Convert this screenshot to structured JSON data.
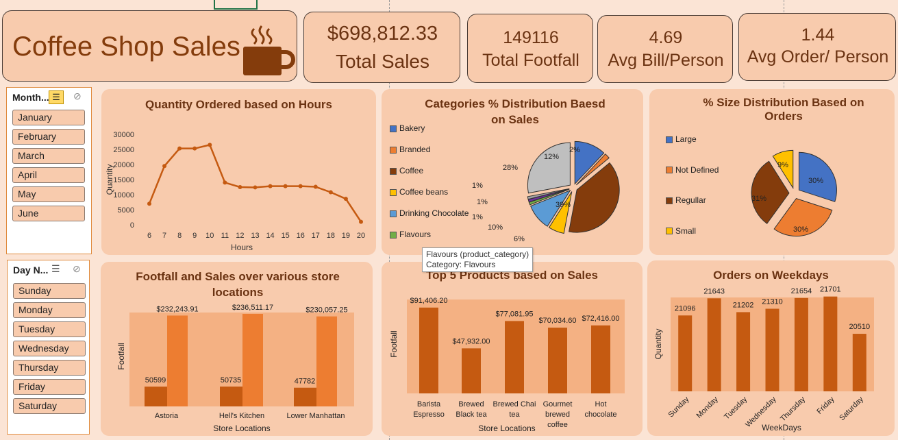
{
  "title": "Coffee Shop Sales",
  "kpis": [
    {
      "value": "$698,812.33",
      "label": "Total Sales"
    },
    {
      "value": "149116",
      "label": "Total Footfall"
    },
    {
      "value": "4.69",
      "label": "Avg Bill/Person"
    },
    {
      "value": "1.44",
      "label": "Avg Order/ Person"
    }
  ],
  "month_slicer": {
    "header": "Month...",
    "items": [
      "January",
      "February",
      "March",
      "April",
      "May",
      "June"
    ]
  },
  "day_slicer": {
    "header": "Day N...",
    "items": [
      "Sunday",
      "Monday",
      "Tuesday",
      "Wednesday",
      "Thursday",
      "Friday",
      "Saturday"
    ]
  },
  "tooltip": {
    "line1": "Flavours (product_category)",
    "line2": "Category: Flavours"
  },
  "colors": {
    "accent": "#c55a11",
    "accent_light": "#ed7d31",
    "panel": "#f8cbad",
    "background": "#fbe4d5",
    "title_brown": "#6b3312"
  },
  "chart_data": [
    {
      "type": "line",
      "title": "Quantity Ordered based on Hours",
      "xlabel": "Hours",
      "ylabel": "Quantity",
      "x": [
        6,
        7,
        8,
        9,
        10,
        11,
        12,
        13,
        14,
        15,
        16,
        17,
        18,
        19,
        20
      ],
      "values": [
        7000,
        19500,
        25300,
        25300,
        26500,
        14000,
        12500,
        12400,
        12800,
        12800,
        12800,
        12600,
        10800,
        8600,
        1000
      ],
      "ylim": [
        0,
        30000
      ],
      "yticks": [
        0,
        5000,
        10000,
        15000,
        20000,
        25000,
        30000
      ]
    },
    {
      "type": "pie",
      "title": "Categories % Distribution Baesd on Sales",
      "slices": [
        {
          "name": "Bakery",
          "value": 12,
          "label": "12%",
          "color": "#4472c4"
        },
        {
          "name": "Branded",
          "value": 2,
          "label": "2%",
          "color": "#ed7d31"
        },
        {
          "name": "Coffee",
          "value": 39,
          "label": "39%",
          "color": "#843c0c"
        },
        {
          "name": "Coffee beans",
          "value": 6,
          "label": "6%",
          "color": "#ffc000"
        },
        {
          "name": "Drinking Chocolate",
          "value": 10,
          "label": "10%",
          "color": "#5b9bd5"
        },
        {
          "name": "Flavours",
          "value": 1,
          "label": "1%",
          "color": "#70ad47"
        },
        {
          "name": "",
          "value": 1,
          "label": "1%",
          "color": "#7030a0"
        },
        {
          "name": "",
          "value": 1,
          "label": "1%",
          "color": "#a5a5a5"
        },
        {
          "name": "",
          "value": 28,
          "label": "28%",
          "color": "#bfbfbf"
        }
      ],
      "legend": [
        "Bakery",
        "Branded",
        "Coffee",
        "Coffee beans",
        "Drinking Chocolate",
        "Flavours"
      ]
    },
    {
      "type": "pie",
      "title": "% Size Distribution Based on Orders",
      "slices": [
        {
          "name": "Large",
          "value": 30,
          "label": "30%",
          "color": "#4472c4"
        },
        {
          "name": "Not Defined",
          "value": 30,
          "label": "30%",
          "color": "#ed7d31"
        },
        {
          "name": "Regullar",
          "value": 31,
          "label": "31%",
          "color": "#843c0c"
        },
        {
          "name": "Small",
          "value": 9,
          "label": "9%",
          "color": "#ffc000"
        }
      ],
      "legend": [
        "Large",
        "Not Defined",
        "Regullar",
        "Small"
      ]
    },
    {
      "type": "bar",
      "title": "Footfall and Sales over various store locations",
      "xlabel": "Store Locations",
      "ylabel": "Footfall",
      "categories": [
        "Astoria",
        "Hell's Kitchen",
        "Lower Manhattan"
      ],
      "series": [
        {
          "values": [
            50599,
            50735,
            47782
          ],
          "labels": [
            "50599",
            "50735",
            "47782"
          ]
        },
        {
          "values": [
            232243.91,
            236511.17,
            230057.25
          ],
          "labels": [
            "$232,243.91",
            "$236,511.17",
            "$230,057.25"
          ]
        }
      ]
    },
    {
      "type": "bar",
      "title": "Top 5 Products based on Sales",
      "xlabel": "Store Locations",
      "ylabel": "Footfall",
      "categories": [
        [
          "Barista",
          "Espresso"
        ],
        [
          "Brewed",
          "Black tea"
        ],
        [
          "Brewed Chai",
          "tea"
        ],
        [
          "Gourmet",
          "brewed",
          "coffee"
        ],
        [
          "Hot",
          "chocolate"
        ]
      ],
      "values": [
        91406.2,
        47932.0,
        77081.95,
        70034.6,
        72416.0
      ],
      "labels": [
        "$91,406.20",
        "$47,932.00",
        "$77,081.95",
        "$70,034.60",
        "$72,416.00"
      ]
    },
    {
      "type": "bar",
      "title": "Orders on Weekdays",
      "xlabel": "WeekDays",
      "ylabel": "Quantity",
      "categories": [
        "Sunday",
        "Monday",
        "Tuesday",
        "Wednesday",
        "Thursday",
        "Friday",
        "Saturday"
      ],
      "values": [
        21096,
        21643,
        21202,
        21310,
        21654,
        21701,
        20510
      ],
      "labels": [
        "21096",
        "21643",
        "21202",
        "21310",
        "21654",
        "21701",
        "20510"
      ]
    }
  ]
}
